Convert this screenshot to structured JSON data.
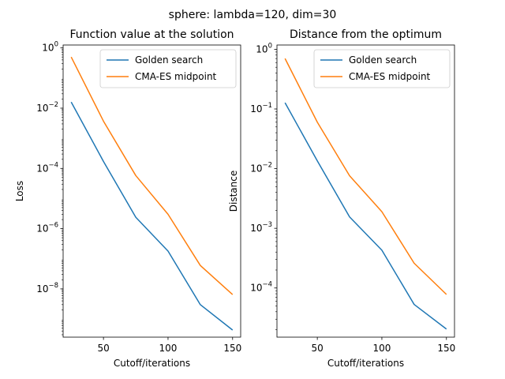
{
  "figure": {
    "suptitle": "sphere: lambda=120, dim=30"
  },
  "chart_data": [
    {
      "type": "line",
      "title": "Function value at the solution",
      "xlabel": "Cutoff/iterations",
      "ylabel": "Loss",
      "yscale": "log",
      "x": [
        25,
        50,
        75,
        100,
        125,
        150
      ],
      "xlim": [
        18.75,
        156.25
      ],
      "xticks": [
        50,
        100,
        150
      ],
      "ylim": [
        2.5e-10,
        1.25
      ],
      "yticks": [
        {
          "value": 1e-08,
          "mant": "10",
          "exp": "−8"
        },
        {
          "value": 1e-06,
          "mant": "10",
          "exp": "−6"
        },
        {
          "value": 0.0001,
          "mant": "10",
          "exp": "−4"
        },
        {
          "value": 0.01,
          "mant": "10",
          "exp": "−2"
        },
        {
          "value": 1,
          "mant": "10",
          "exp": "0"
        }
      ],
      "legend": "upper right",
      "series": [
        {
          "name": "Golden search",
          "color": "#1f77b4",
          "values": [
            0.016,
            0.00017,
            2.4e-06,
            1.8e-07,
            3e-09,
            4.3e-10
          ]
        },
        {
          "name": "CMA-ES midpoint",
          "color": "#ff7f0e",
          "values": [
            0.5,
            0.0037,
            5.8e-05,
            3e-06,
            6e-08,
            6.5e-09
          ]
        }
      ]
    },
    {
      "type": "line",
      "title": "Distance from the optimum",
      "xlabel": "Cutoff/iterations",
      "ylabel": "Distance",
      "yscale": "log",
      "x": [
        25,
        50,
        75,
        100,
        125,
        150
      ],
      "xlim": [
        18.75,
        156.25
      ],
      "xticks": [
        50,
        100,
        150
      ],
      "ylim": [
        1.5e-05,
        1.18
      ],
      "yticks": [
        {
          "value": 0.0001,
          "mant": "10",
          "exp": "−4"
        },
        {
          "value": 0.001,
          "mant": "10",
          "exp": "−3"
        },
        {
          "value": 0.01,
          "mant": "10",
          "exp": "−2"
        },
        {
          "value": 0.1,
          "mant": "10",
          "exp": "−1"
        },
        {
          "value": 1,
          "mant": "10",
          "exp": "0"
        }
      ],
      "legend": "upper right",
      "series": [
        {
          "name": "Golden search",
          "color": "#1f77b4",
          "values": [
            0.127,
            0.0135,
            0.00155,
            0.00043,
            5.3e-05,
            2.05e-05
          ]
        },
        {
          "name": "CMA-ES midpoint",
          "color": "#ff7f0e",
          "values": [
            0.7,
            0.06,
            0.0076,
            0.0019,
            0.00026,
            7.8e-05
          ]
        }
      ]
    }
  ]
}
